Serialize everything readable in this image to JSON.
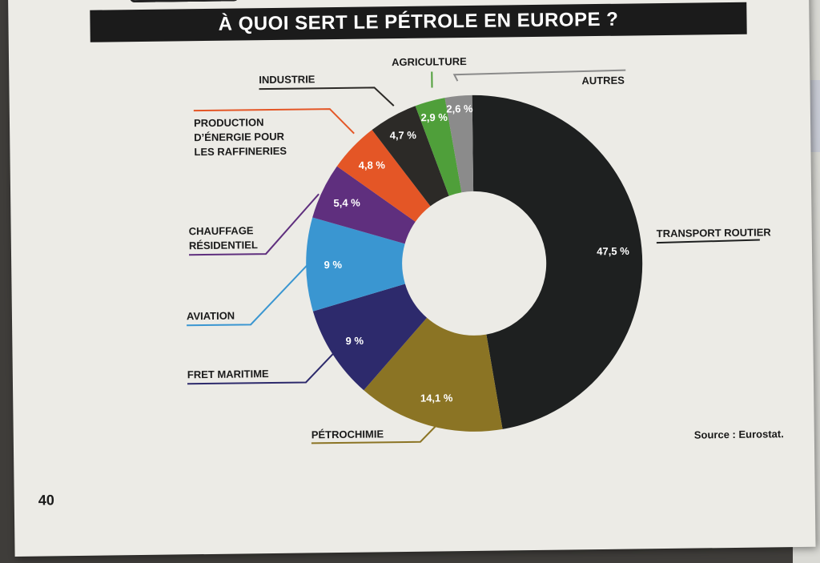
{
  "title": "À QUOI SERT LE PÉTROLE EN EUROPE ?",
  "source": "Source : Eurostat.",
  "page_number": "40",
  "chart_data": {
    "type": "pie",
    "donut": true,
    "title": "À QUOI SERT LE PÉTROLE EN EUROPE ?",
    "slices": [
      {
        "name": "TRANSPORT ROUTIER",
        "value": 47.5,
        "value_label": "47,5 %",
        "color": "#1e2020"
      },
      {
        "name": "PÉTROCHIMIE",
        "value": 14.1,
        "value_label": "14,1 %",
        "color": "#8b7424"
      },
      {
        "name": "FRET MARITIME",
        "value": 9,
        "value_label": "9 %",
        "color": "#2d2a6c"
      },
      {
        "name": "AVIATION",
        "value": 9,
        "value_label": "9 %",
        "color": "#3a96d1"
      },
      {
        "name": "CHAUFFAGE RÉSIDENTIEL",
        "value": 5.4,
        "value_label": "5,4 %",
        "color": "#5f2f7e"
      },
      {
        "name": "PRODUCTION D’ÉNERGIE POUR LES RAFFINERIES",
        "value": 4.8,
        "value_label": "4,8 %",
        "color": "#e45626"
      },
      {
        "name": "INDUSTRIE",
        "value": 4.7,
        "value_label": "4,7 %",
        "color": "#2c2a27"
      },
      {
        "name": "AGRICULTURE",
        "value": 2.9,
        "value_label": "2,9 %",
        "color": "#4f9f3a"
      },
      {
        "name": "AUTRES",
        "value": 2.6,
        "value_label": "2,6 %",
        "color": "#8b8b8b"
      }
    ]
  }
}
